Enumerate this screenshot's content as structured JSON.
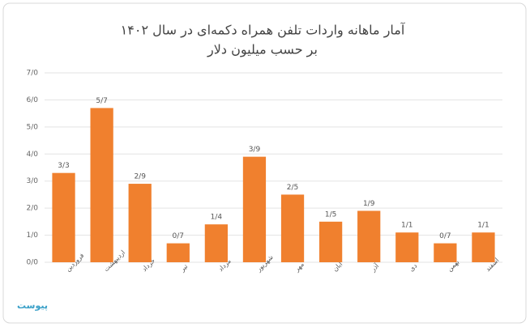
{
  "chart_data": {
    "type": "bar",
    "title": "آمار  ماهانه واردات تلفن همراه دکمه‌ای در سال ۱۴۰۲",
    "subtitle": "بر حسب میلیون دلار",
    "logo": "پیوست",
    "categories": [
      "فروردین",
      "اردیبهشت",
      "خرداد",
      "تیر",
      "مرداد",
      "شهریور",
      "مهر",
      "آبان",
      "آذر",
      "دی",
      "بهمن",
      "اسفند"
    ],
    "values": [
      3.3,
      5.7,
      2.9,
      0.7,
      1.4,
      3.9,
      2.5,
      1.5,
      1.9,
      1.1,
      0.7,
      1.1
    ],
    "value_labels": [
      "3/3",
      "5/7",
      "2/9",
      "0/7",
      "1/4",
      "3/9",
      "2/5",
      "1/5",
      "1/9",
      "1/1",
      "0/7",
      "1/1"
    ],
    "color": "#f0802e",
    "ylim": [
      0,
      7
    ],
    "yticks": [
      {
        "value": 0,
        "label": "0/0"
      },
      {
        "value": 1,
        "label": "1/0"
      },
      {
        "value": 2,
        "label": "2/0"
      },
      {
        "value": 3,
        "label": "3/0"
      },
      {
        "value": 4,
        "label": "4/0"
      },
      {
        "value": 5,
        "label": "5/0"
      },
      {
        "value": 6,
        "label": "6/0"
      },
      {
        "value": 7,
        "label": "7/0"
      }
    ],
    "grid": true
  }
}
